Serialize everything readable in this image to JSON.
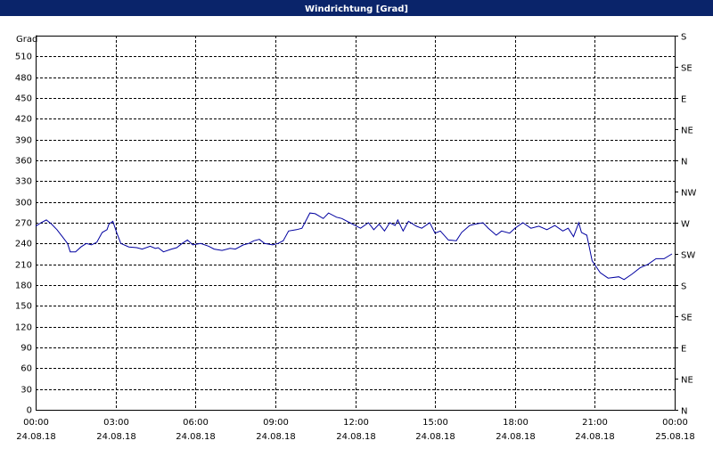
{
  "chart_data": {
    "type": "line",
    "title": "Windrichtung [Grad]",
    "ylabel": "Grad",
    "ylim": [
      0,
      540
    ],
    "yticks": [
      0,
      30,
      60,
      90,
      120,
      150,
      180,
      210,
      240,
      270,
      300,
      330,
      360,
      390,
      420,
      450,
      480,
      510
    ],
    "y2lim": [
      0,
      540
    ],
    "y2ticks": [
      {
        "value": 0,
        "label": "N"
      },
      {
        "value": 45,
        "label": "NE"
      },
      {
        "value": 90,
        "label": "E"
      },
      {
        "value": 135,
        "label": "SE"
      },
      {
        "value": 180,
        "label": "S"
      },
      {
        "value": 225,
        "label": "SW"
      },
      {
        "value": 270,
        "label": "W"
      },
      {
        "value": 315,
        "label": "NW"
      },
      {
        "value": 360,
        "label": "N"
      },
      {
        "value": 405,
        "label": "NE"
      },
      {
        "value": 450,
        "label": "E"
      },
      {
        "value": 495,
        "label": "SE"
      },
      {
        "value": 540,
        "label": "S"
      }
    ],
    "xlim": [
      0,
      24
    ],
    "xticks": [
      {
        "value": 0,
        "label": "00:00"
      },
      {
        "value": 3,
        "label": "03:00"
      },
      {
        "value": 6,
        "label": "06:00"
      },
      {
        "value": 9,
        "label": "09:00"
      },
      {
        "value": 12,
        "label": "12:00"
      },
      {
        "value": 15,
        "label": "15:00"
      },
      {
        "value": 18,
        "label": "18:00"
      },
      {
        "value": 21,
        "label": "21:00"
      },
      {
        "value": 24,
        "label": "00:00"
      }
    ],
    "xtick_dates": [
      "24.08.18",
      "24.08.18",
      "24.08.18",
      "24.08.18",
      "24.08.18",
      "24.08.18",
      "24.08.18",
      "24.08.18",
      "25.08.18"
    ],
    "grid": true,
    "series": [
      {
        "color": "#0000a0",
        "x": [
          0,
          0.2,
          0.4,
          0.6,
          0.8,
          1.0,
          1.2,
          1.3,
          1.5,
          1.7,
          1.9,
          2.1,
          2.3,
          2.5,
          2.68,
          2.75,
          2.9,
          3.05,
          3.2,
          3.5,
          3.8,
          4.0,
          4.3,
          4.5,
          4.6,
          4.8,
          5.1,
          5.3,
          5.5,
          5.7,
          5.9,
          6.2,
          6.5,
          6.7,
          7.0,
          7.3,
          7.5,
          7.8,
          8.0,
          8.2,
          8.4,
          8.6,
          8.9,
          9.1,
          9.3,
          9.5,
          9.8,
          10.0,
          10.3,
          10.5,
          10.8,
          11.0,
          11.3,
          11.5,
          11.8,
          12.0,
          12.2,
          12.5,
          12.7,
          12.9,
          13.1,
          13.3,
          13.5,
          13.6,
          13.8,
          14.0,
          14.3,
          14.5,
          14.8,
          15.0,
          15.2,
          15.5,
          15.8,
          16.0,
          16.3,
          16.5,
          16.8,
          17.0,
          17.3,
          17.5,
          17.8,
          18.0,
          18.3,
          18.6,
          18.9,
          19.2,
          19.5,
          19.8,
          20.0,
          20.2,
          20.4,
          20.5,
          20.7,
          20.9,
          21.2,
          21.5,
          21.9,
          22.1,
          22.4,
          22.7,
          23.0,
          23.3,
          23.6,
          23.9
        ],
        "values": [
          265,
          270,
          274,
          268,
          260,
          250,
          240,
          228,
          228,
          235,
          240,
          238,
          242,
          256,
          260,
          268,
          272,
          255,
          240,
          235,
          234,
          232,
          236,
          233,
          234,
          228,
          232,
          234,
          240,
          245,
          238,
          240,
          236,
          232,
          230,
          233,
          232,
          238,
          240,
          244,
          246,
          240,
          238,
          240,
          244,
          258,
          260,
          262,
          284,
          283,
          276,
          284,
          278,
          276,
          270,
          266,
          262,
          270,
          260,
          268,
          258,
          270,
          266,
          274,
          258,
          272,
          265,
          262,
          270,
          255,
          258,
          245,
          244,
          256,
          266,
          268,
          270,
          262,
          252,
          258,
          255,
          262,
          270,
          262,
          265,
          260,
          266,
          258,
          262,
          250,
          270,
          256,
          252,
          215,
          198,
          190,
          192,
          188,
          196,
          205,
          210,
          218,
          218,
          225
        ]
      }
    ]
  }
}
